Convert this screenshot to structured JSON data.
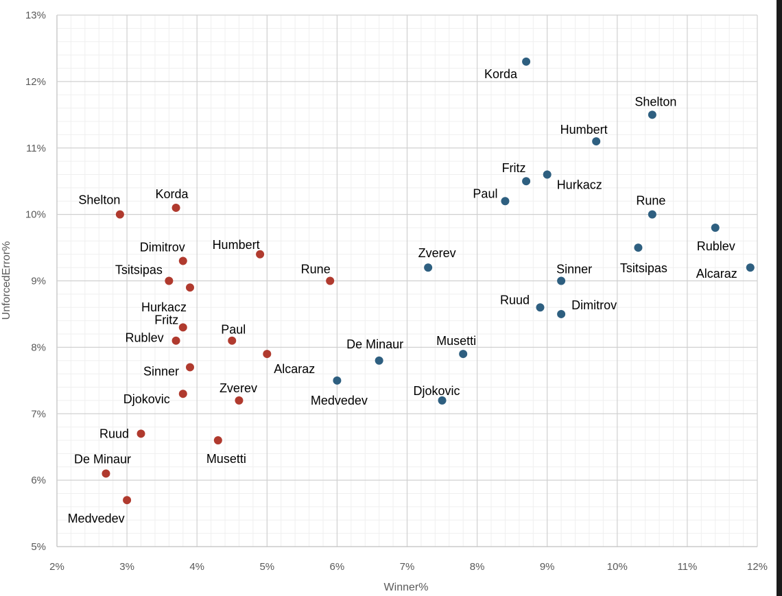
{
  "chart_data": {
    "type": "scatter",
    "title": "",
    "xlabel": "Winner%",
    "ylabel": "UnforcedError%",
    "xlim": [
      2,
      12
    ],
    "ylim": [
      5,
      13
    ],
    "x_ticks": [
      "2%",
      "3%",
      "4%",
      "5%",
      "6%",
      "7%",
      "8%",
      "9%",
      "10%",
      "11%",
      "12%"
    ],
    "y_ticks": [
      "5%",
      "6%",
      "7%",
      "8%",
      "9%",
      "10%",
      "11%",
      "12%",
      "13%"
    ],
    "grid": true,
    "legend": "none",
    "series": [
      {
        "color": "#b03a2e",
        "points": [
          {
            "label": "Shelton",
            "x": 2.9,
            "y": 10.0
          },
          {
            "label": "Korda",
            "x": 3.7,
            "y": 10.1
          },
          {
            "label": "Dimitrov",
            "x": 3.8,
            "y": 9.3
          },
          {
            "label": "Humbert",
            "x": 4.9,
            "y": 9.4
          },
          {
            "label": "Tsitsipas",
            "x": 3.6,
            "y": 9.0
          },
          {
            "label": "Hurkacz",
            "x": 3.9,
            "y": 8.9
          },
          {
            "label": "Rune",
            "x": 5.9,
            "y": 9.0
          },
          {
            "label": "Fritz",
            "x": 3.8,
            "y": 8.3
          },
          {
            "label": "Rublev",
            "x": 3.7,
            "y": 8.1
          },
          {
            "label": "Paul",
            "x": 4.5,
            "y": 8.1
          },
          {
            "label": "Alcaraz",
            "x": 5.0,
            "y": 7.9
          },
          {
            "label": "Sinner",
            "x": 3.9,
            "y": 7.7
          },
          {
            "label": "Djokovic",
            "x": 3.8,
            "y": 7.3
          },
          {
            "label": "Zverev",
            "x": 4.6,
            "y": 7.2
          },
          {
            "label": "Ruud",
            "x": 3.2,
            "y": 6.7
          },
          {
            "label": "Musetti",
            "x": 4.3,
            "y": 6.6
          },
          {
            "label": "De Minaur",
            "x": 2.7,
            "y": 6.1
          },
          {
            "label": "Medvedev",
            "x": 3.0,
            "y": 5.7
          }
        ]
      },
      {
        "color": "#2e5f80",
        "points": [
          {
            "label": "Korda",
            "x": 8.7,
            "y": 12.3
          },
          {
            "label": "Shelton",
            "x": 10.5,
            "y": 11.5
          },
          {
            "label": "Humbert",
            "x": 9.7,
            "y": 11.1
          },
          {
            "label": "Fritz",
            "x": 8.7,
            "y": 10.5
          },
          {
            "label": "Hurkacz",
            "x": 9.0,
            "y": 10.6
          },
          {
            "label": "Paul",
            "x": 8.4,
            "y": 10.2
          },
          {
            "label": "Rune",
            "x": 10.5,
            "y": 10.0
          },
          {
            "label": "Rublev",
            "x": 11.4,
            "y": 9.8
          },
          {
            "label": "Tsitsipas",
            "x": 10.3,
            "y": 9.5
          },
          {
            "label": "Zverev",
            "x": 7.3,
            "y": 9.2
          },
          {
            "label": "Alcaraz",
            "x": 11.9,
            "y": 9.2
          },
          {
            "label": "Sinner",
            "x": 9.2,
            "y": 9.0
          },
          {
            "label": "Ruud",
            "x": 8.9,
            "y": 8.6
          },
          {
            "label": "Dimitrov",
            "x": 9.2,
            "y": 8.5
          },
          {
            "label": "De Minaur",
            "x": 6.6,
            "y": 7.8
          },
          {
            "label": "Musetti",
            "x": 7.8,
            "y": 7.9
          },
          {
            "label": "Medvedev",
            "x": 6.0,
            "y": 7.5
          },
          {
            "label": "Djokovic",
            "x": 7.5,
            "y": 7.2
          }
        ]
      }
    ]
  }
}
